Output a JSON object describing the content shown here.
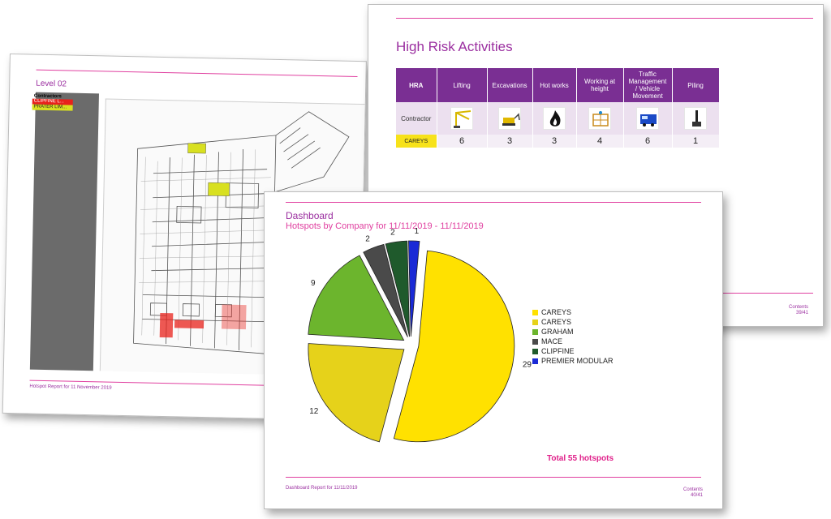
{
  "level_page": {
    "title": "Level 02",
    "legend_heading": "Contractors",
    "legend": [
      {
        "label": "CLIPFINE L...",
        "color": "#e8221b"
      },
      {
        "label": "PRATER LIM...",
        "color": "#d8e020"
      }
    ],
    "footer": "Hotspot Report for 11 November 2019"
  },
  "hra_page": {
    "title": "High Risk Activities",
    "header_label": "HRA",
    "columns": [
      "Lifting",
      "Excavations",
      "Hot works",
      "Working at height",
      "Traffic Management / Vehicle Movement",
      "Piling"
    ],
    "icons": [
      "crane-icon",
      "excavator-icon",
      "flame-icon",
      "scaffold-icon",
      "truck-icon",
      "piling-rig-icon"
    ],
    "row_label": "Contractor",
    "company": "CAREYS",
    "counts": [
      "6",
      "3",
      "3",
      "4",
      "6",
      "1"
    ],
    "footer_contents": "Contents",
    "footer_page": "39/41"
  },
  "dashboard_page": {
    "title": "Dashboard",
    "subtitle": "Hotspots by Company for 11/11/2019 - 11/11/2019",
    "total": "Total 55 hotspots",
    "footer": "Dashboard Report for 11/11/2019",
    "footer_contents": "Contents",
    "footer_page": "40/41"
  },
  "chart_data": {
    "type": "pie",
    "title": "Hotspots by Company for 11/11/2019 - 11/11/2019",
    "series": [
      {
        "name": "CAREYS",
        "value": 29,
        "color": "#ffe100"
      },
      {
        "name": "CAREYS",
        "value": 12,
        "color": "#e6d21a"
      },
      {
        "name": "GRAHAM",
        "value": 9,
        "color": "#6cb52d"
      },
      {
        "name": "MACE",
        "value": 2,
        "color": "#4a4a4a"
      },
      {
        "name": "CLIPFINE",
        "value": 2,
        "color": "#1f5a2c"
      },
      {
        "name": "PREMIER MODULAR",
        "value": 1,
        "color": "#1a2ad6"
      }
    ],
    "legend_placement": "right"
  }
}
